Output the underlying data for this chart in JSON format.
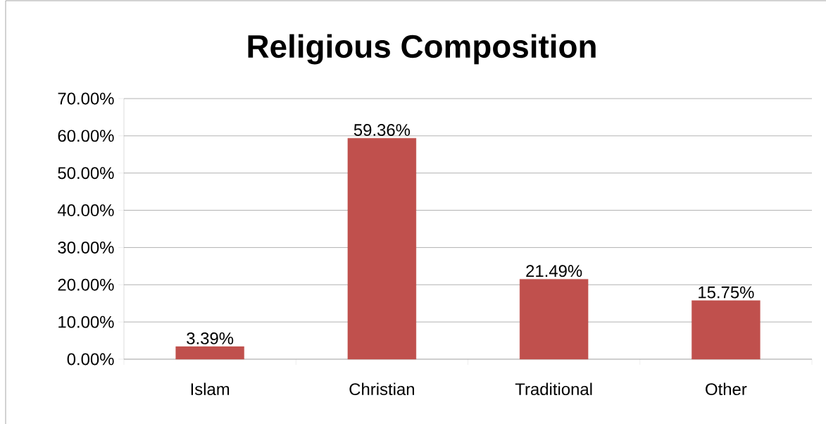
{
  "chart_data": {
    "type": "bar",
    "title": "Religious Composition",
    "categories": [
      "Islam",
      "Christian",
      "Traditional",
      "Other"
    ],
    "values": [
      3.39,
      59.36,
      21.49,
      15.75
    ],
    "value_labels": [
      "3.39%",
      "59.36%",
      "21.49%",
      "15.75%"
    ],
    "color": "#c0504d",
    "ylim": [
      0,
      70
    ],
    "yticks": [
      {
        "value": 0,
        "label": "0.00%"
      },
      {
        "value": 10,
        "label": "10.00%"
      },
      {
        "value": 20,
        "label": "20.00%"
      },
      {
        "value": 30,
        "label": "30.00%"
      },
      {
        "value": 40,
        "label": "40.00%"
      },
      {
        "value": 50,
        "label": "50.00%"
      },
      {
        "value": 60,
        "label": "60.00%"
      },
      {
        "value": 70,
        "label": "70.00%"
      }
    ],
    "grid": "y"
  }
}
